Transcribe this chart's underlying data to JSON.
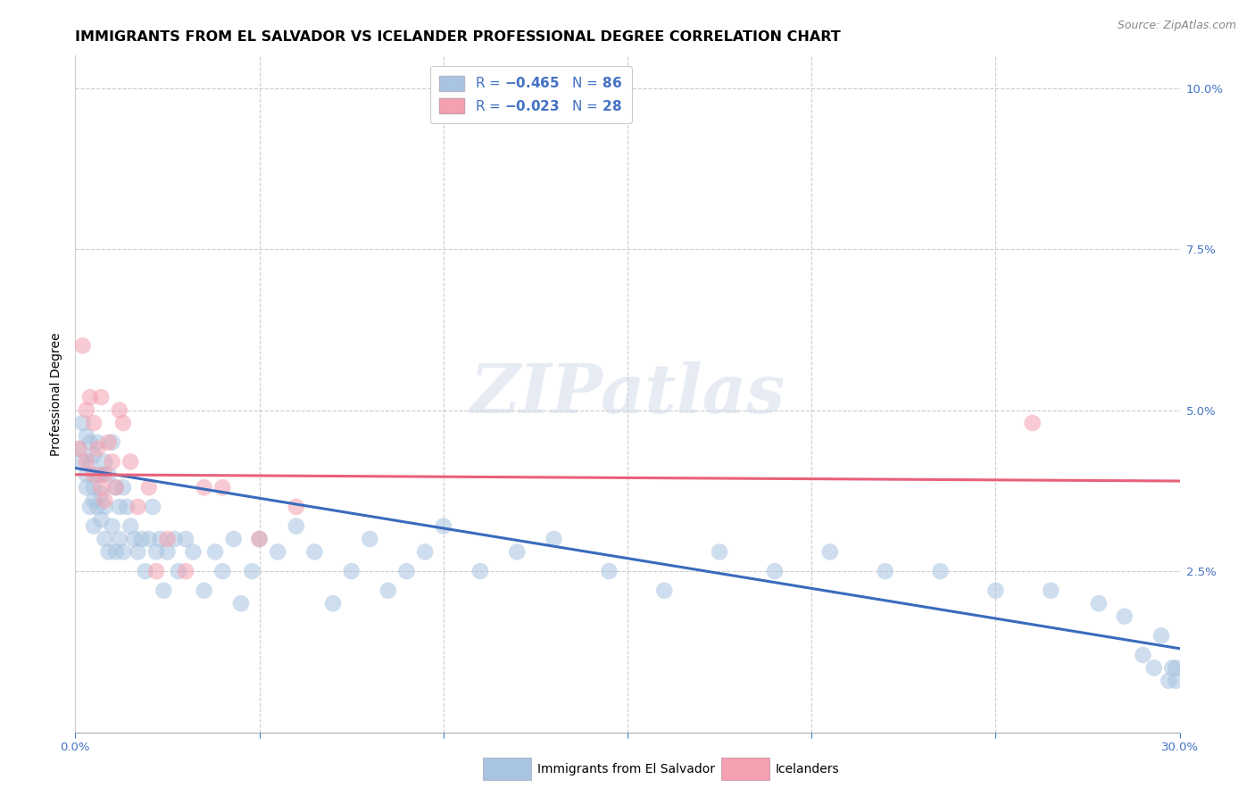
{
  "title": "IMMIGRANTS FROM EL SALVADOR VS ICELANDER PROFESSIONAL DEGREE CORRELATION CHART",
  "source": "Source: ZipAtlas.com",
  "ylabel": "Professional Degree",
  "legend_labels": [
    "Immigrants from El Salvador",
    "Icelanders"
  ],
  "blue_color": "#a8c4e0",
  "pink_color": "#f4a0b0",
  "blue_line_color": "#3a6bbd",
  "pink_line_color": "#e8607a",
  "legend_text_color": "#4472c4",
  "xmin": 0.0,
  "xmax": 0.3,
  "ymin": 0.0,
  "ymax": 0.105,
  "right_yticks": [
    0.0,
    0.025,
    0.05,
    0.075,
    0.1
  ],
  "right_yticklabels": [
    "",
    "2.5%",
    "5.0%",
    "7.5%",
    "10.0%"
  ],
  "watermark": "ZIPatlas",
  "blue_x": [
    0.001,
    0.002,
    0.002,
    0.003,
    0.003,
    0.003,
    0.004,
    0.004,
    0.004,
    0.005,
    0.005,
    0.005,
    0.005,
    0.006,
    0.006,
    0.006,
    0.007,
    0.007,
    0.007,
    0.008,
    0.008,
    0.008,
    0.009,
    0.009,
    0.01,
    0.01,
    0.011,
    0.011,
    0.012,
    0.012,
    0.013,
    0.013,
    0.014,
    0.015,
    0.016,
    0.017,
    0.018,
    0.019,
    0.02,
    0.021,
    0.022,
    0.023,
    0.024,
    0.025,
    0.027,
    0.028,
    0.03,
    0.032,
    0.035,
    0.038,
    0.04,
    0.043,
    0.045,
    0.048,
    0.05,
    0.055,
    0.06,
    0.065,
    0.07,
    0.075,
    0.08,
    0.085,
    0.09,
    0.095,
    0.1,
    0.11,
    0.12,
    0.13,
    0.145,
    0.16,
    0.175,
    0.19,
    0.205,
    0.22,
    0.235,
    0.25,
    0.265,
    0.278,
    0.285,
    0.29,
    0.293,
    0.295,
    0.297,
    0.298,
    0.299,
    0.299
  ],
  "blue_y": [
    0.044,
    0.048,
    0.042,
    0.046,
    0.04,
    0.038,
    0.045,
    0.035,
    0.042,
    0.043,
    0.036,
    0.038,
    0.032,
    0.045,
    0.035,
    0.04,
    0.04,
    0.033,
    0.037,
    0.042,
    0.03,
    0.035,
    0.04,
    0.028,
    0.045,
    0.032,
    0.038,
    0.028,
    0.035,
    0.03,
    0.038,
    0.028,
    0.035,
    0.032,
    0.03,
    0.028,
    0.03,
    0.025,
    0.03,
    0.035,
    0.028,
    0.03,
    0.022,
    0.028,
    0.03,
    0.025,
    0.03,
    0.028,
    0.022,
    0.028,
    0.025,
    0.03,
    0.02,
    0.025,
    0.03,
    0.028,
    0.032,
    0.028,
    0.02,
    0.025,
    0.03,
    0.022,
    0.025,
    0.028,
    0.032,
    0.025,
    0.028,
    0.03,
    0.025,
    0.022,
    0.028,
    0.025,
    0.028,
    0.025,
    0.025,
    0.022,
    0.022,
    0.02,
    0.018,
    0.012,
    0.01,
    0.015,
    0.008,
    0.01,
    0.01,
    0.008
  ],
  "pink_x": [
    0.001,
    0.002,
    0.003,
    0.003,
    0.004,
    0.005,
    0.005,
    0.006,
    0.007,
    0.007,
    0.008,
    0.008,
    0.009,
    0.01,
    0.011,
    0.012,
    0.013,
    0.015,
    0.017,
    0.02,
    0.022,
    0.025,
    0.03,
    0.035,
    0.04,
    0.05,
    0.06,
    0.26
  ],
  "pink_y": [
    0.044,
    0.06,
    0.05,
    0.042,
    0.052,
    0.048,
    0.04,
    0.044,
    0.038,
    0.052,
    0.04,
    0.036,
    0.045,
    0.042,
    0.038,
    0.05,
    0.048,
    0.042,
    0.035,
    0.038,
    0.025,
    0.03,
    0.025,
    0.038,
    0.038,
    0.03,
    0.035,
    0.048
  ],
  "blue_line_y_start": 0.041,
  "blue_line_y_end": 0.013,
  "pink_line_y_start": 0.04,
  "pink_line_y_end": 0.039,
  "scatter_size": 180,
  "scatter_alpha": 0.55,
  "title_fontsize": 11.5,
  "axis_label_fontsize": 10,
  "tick_fontsize": 9.5,
  "legend_fontsize": 11
}
